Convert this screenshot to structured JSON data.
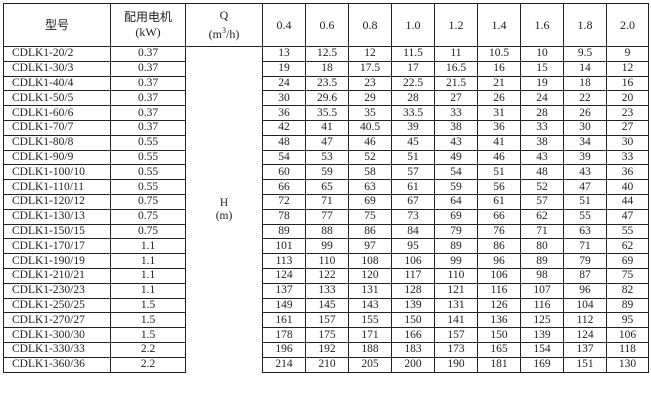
{
  "header": {
    "model": "型号",
    "power_line1": "配用电机",
    "power_line2": "(kW)",
    "q_line1": "Q",
    "q_unit_pre": "(m",
    "q_unit_sup": "3",
    "q_unit_post": "/h)",
    "flows": [
      "0.4",
      "0.6",
      "0.8",
      "1.0",
      "1.2",
      "1.4",
      "1.6",
      "1.8",
      "2.0"
    ]
  },
  "h_label_line1": "H",
  "h_label_line2": "(m)",
  "rows": [
    {
      "model": "CDLK1-20/2",
      "power": "0.37",
      "heads": [
        "13",
        "12.5",
        "12",
        "11.5",
        "11",
        "10.5",
        "10",
        "9.5",
        "9"
      ]
    },
    {
      "model": "CDLK1-30/3",
      "power": "0.37",
      "heads": [
        "19",
        "18",
        "17.5",
        "17",
        "16.5",
        "16",
        "15",
        "14",
        "12"
      ]
    },
    {
      "model": "CDLK1-40/4",
      "power": "0.37",
      "heads": [
        "24",
        "23.5",
        "23",
        "22.5",
        "21.5",
        "21",
        "19",
        "18",
        "16"
      ]
    },
    {
      "model": "CDLK1-50/5",
      "power": "0.37",
      "heads": [
        "30",
        "29.6",
        "29",
        "28",
        "27",
        "26",
        "24",
        "22",
        "20"
      ]
    },
    {
      "model": "CDLK1-60/6",
      "power": "0.37",
      "heads": [
        "36",
        "35.5",
        "35",
        "33.5",
        "33",
        "31",
        "28",
        "26",
        "23"
      ]
    },
    {
      "model": "CDLK1-70/7",
      "power": "0.37",
      "heads": [
        "42",
        "41",
        "40.5",
        "39",
        "38",
        "36",
        "33",
        "30",
        "27"
      ]
    },
    {
      "model": "CDLK1-80/8",
      "power": "0.55",
      "heads": [
        "48",
        "47",
        "46",
        "45",
        "43",
        "41",
        "38",
        "34",
        "30"
      ]
    },
    {
      "model": "CDLK1-90/9",
      "power": "0.55",
      "heads": [
        "54",
        "53",
        "52",
        "51",
        "49",
        "46",
        "43",
        "39",
        "33"
      ]
    },
    {
      "model": "CDLK1-100/10",
      "power": "0.55",
      "heads": [
        "60",
        "59",
        "58",
        "57",
        "54",
        "51",
        "48",
        "43",
        "36"
      ]
    },
    {
      "model": "CDLK1-110/11",
      "power": "0.55",
      "heads": [
        "66",
        "65",
        "63",
        "61",
        "59",
        "56",
        "52",
        "47",
        "40"
      ]
    },
    {
      "model": "CDLK1-120/12",
      "power": "0.75",
      "heads": [
        "72",
        "71",
        "69",
        "67",
        "64",
        "61",
        "57",
        "51",
        "44"
      ]
    },
    {
      "model": "CDLK1-130/13",
      "power": "0.75",
      "heads": [
        "78",
        "77",
        "75",
        "73",
        "69",
        "66",
        "62",
        "55",
        "47"
      ]
    },
    {
      "model": "CDLK1-150/15",
      "power": "0.75",
      "heads": [
        "89",
        "88",
        "86",
        "84",
        "79",
        "76",
        "71",
        "63",
        "55"
      ]
    },
    {
      "model": "CDLK1-170/17",
      "power": "1.1",
      "heads": [
        "101",
        "99",
        "97",
        "95",
        "89",
        "86",
        "80",
        "71",
        "62"
      ]
    },
    {
      "model": "CDLK1-190/19",
      "power": "1.1",
      "heads": [
        "113",
        "110",
        "108",
        "106",
        "99",
        "96",
        "89",
        "79",
        "69"
      ]
    },
    {
      "model": "CDLK1-210/21",
      "power": "1.1",
      "heads": [
        "124",
        "122",
        "120",
        "117",
        "110",
        "106",
        "98",
        "87",
        "75"
      ]
    },
    {
      "model": "CDLK1-230/23",
      "power": "1.1",
      "heads": [
        "137",
        "133",
        "131",
        "128",
        "121",
        "116",
        "107",
        "96",
        "82"
      ]
    },
    {
      "model": "CDLK1-250/25",
      "power": "1.5",
      "heads": [
        "149",
        "145",
        "143",
        "139",
        "131",
        "126",
        "116",
        "104",
        "89"
      ]
    },
    {
      "model": "CDLK1-270/27",
      "power": "1.5",
      "heads": [
        "161",
        "157",
        "155",
        "150",
        "141",
        "136",
        "125",
        "112",
        "95"
      ]
    },
    {
      "model": "CDLK1-300/30",
      "power": "1.5",
      "heads": [
        "178",
        "175",
        "171",
        "166",
        "157",
        "150",
        "139",
        "124",
        "106"
      ]
    },
    {
      "model": "CDLK1-330/33",
      "power": "2.2",
      "heads": [
        "196",
        "192",
        "188",
        "183",
        "173",
        "165",
        "154",
        "137",
        "118"
      ]
    },
    {
      "model": "CDLK1-360/36",
      "power": "2.2",
      "heads": [
        "214",
        "210",
        "205",
        "200",
        "190",
        "181",
        "169",
        "151",
        "130"
      ]
    }
  ]
}
